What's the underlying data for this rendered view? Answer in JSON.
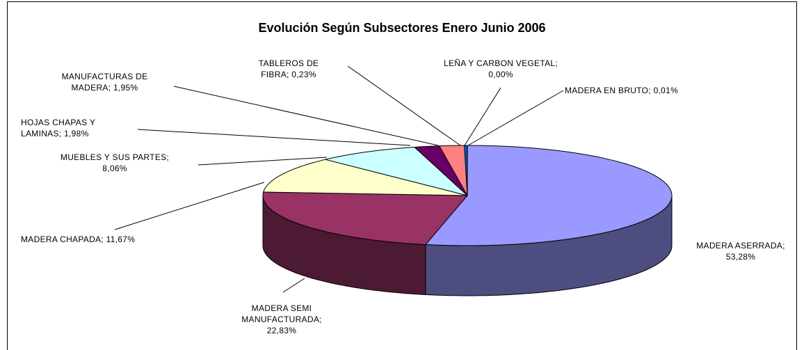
{
  "chart_data": {
    "type": "pie3d",
    "title": "Evolución Según Subsectores Enero Junio 2006",
    "categories": [
      "MADERA ASERRADA;",
      "MADERA SEMI MANUFACTURADA;",
      "MADERA CHAPADA;",
      "MUEBLES Y SUS PARTES;",
      "HOJAS CHAPAS Y LAMINAS;",
      "MANUFACTURAS DE MADERA;",
      "TABLEROS DE FIBRA;",
      "LEÑA Y CARBON VEGETAL;",
      "MADERA EN BRUTO;"
    ],
    "values": [
      53.28,
      22.83,
      11.67,
      8.06,
      1.98,
      1.95,
      0.23,
      0.0,
      0.01
    ],
    "value_labels": [
      "53,28%",
      "22,83%",
      "11,67%",
      "8,06%",
      "1,98%",
      "1,95%",
      "0,23%",
      "0,00%",
      "0,01%"
    ],
    "colors": [
      "#9999ff",
      "#993366",
      "#ffffcc",
      "#ccffff",
      "#660066",
      "#ff8080",
      "#0066cc",
      "#ccccff",
      "#000080"
    ]
  }
}
